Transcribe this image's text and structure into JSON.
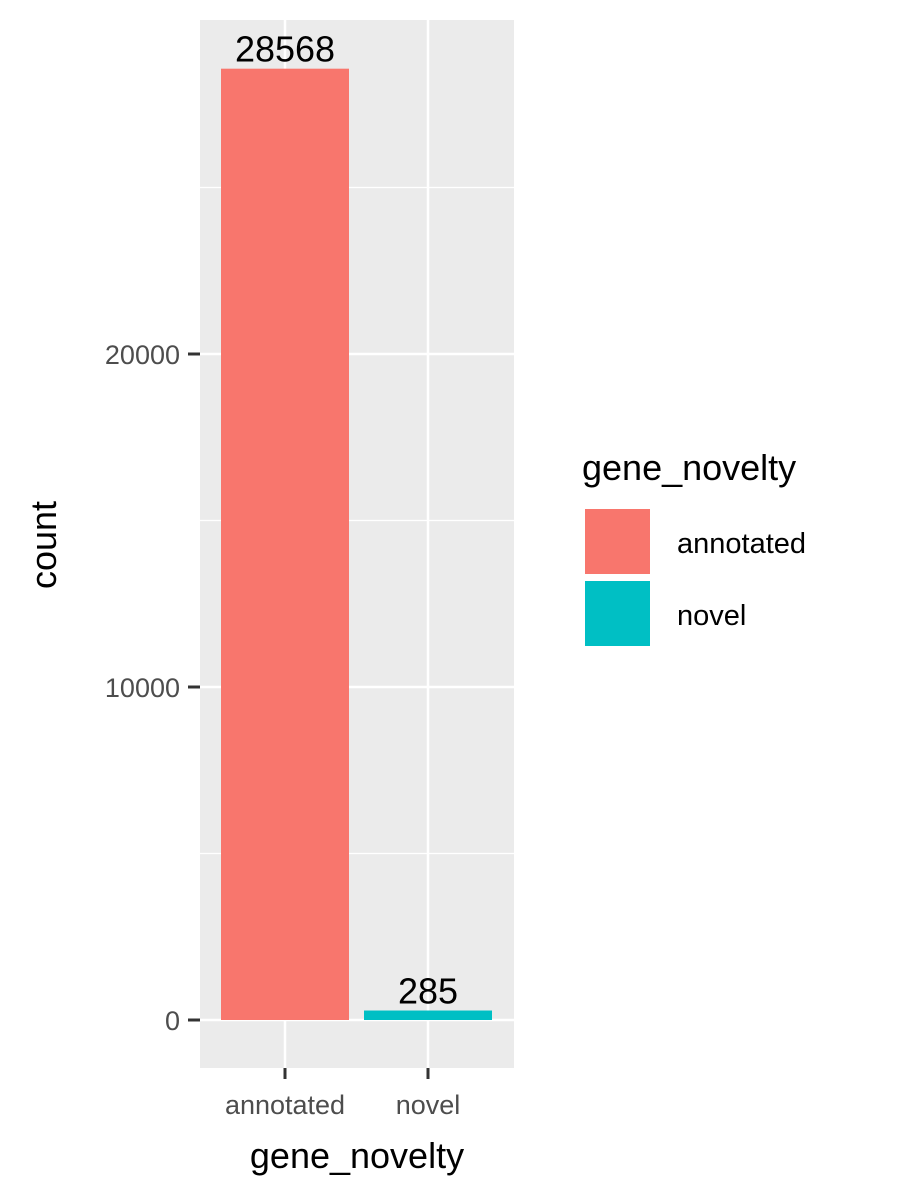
{
  "chart_data": {
    "type": "bar",
    "categories": [
      "annotated",
      "novel"
    ],
    "values": [
      28568,
      285
    ],
    "data_labels": [
      "28568",
      "285"
    ],
    "xlabel": "gene_novelty",
    "ylabel": "count",
    "ylim": [
      -1400,
      30000
    ],
    "yticks": [
      0,
      10000,
      20000
    ],
    "ytick_labels": [
      "0",
      "10000",
      "20000"
    ],
    "grid": true,
    "colors": [
      "#F8766D",
      "#00BFC4"
    ],
    "panel_background": "#EBEBEB",
    "legend": {
      "title": "gene_novelty",
      "placement": "right",
      "items": [
        {
          "label": "annotated",
          "color": "#F8766D"
        },
        {
          "label": "novel",
          "color": "#00BFC4"
        }
      ]
    }
  }
}
